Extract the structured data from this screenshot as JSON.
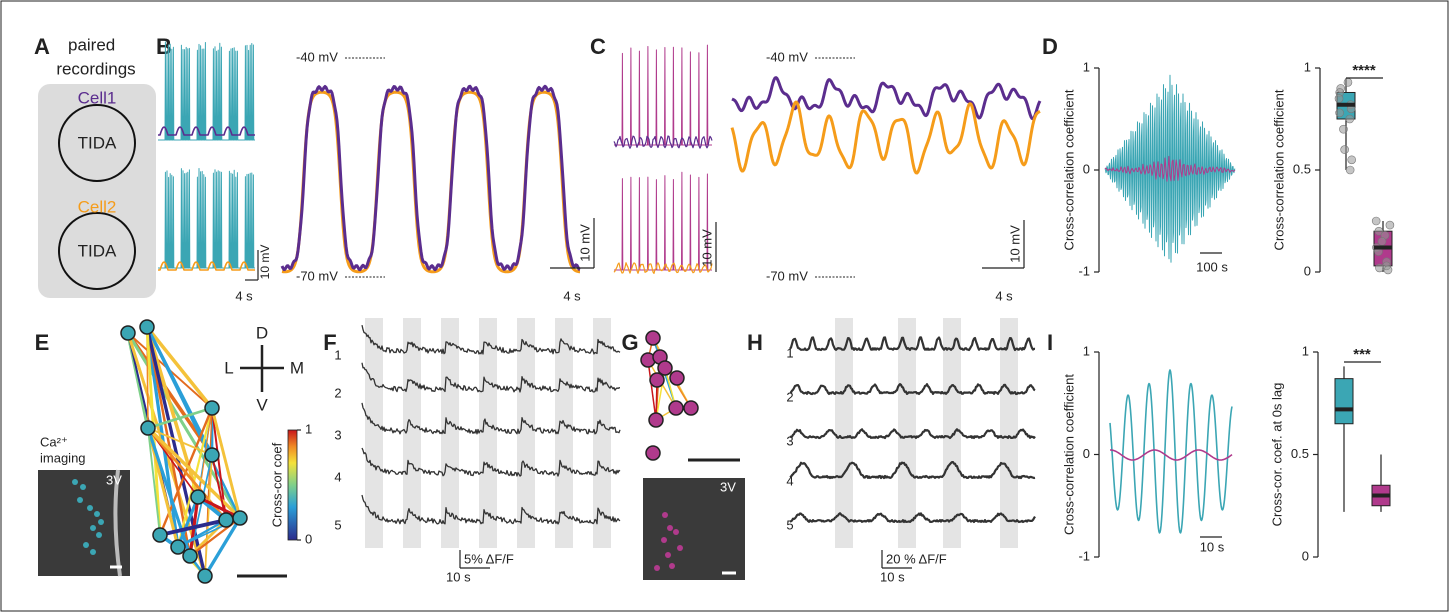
{
  "panels": {
    "A": {
      "label": "A",
      "title_line1": "paired",
      "title_line2": "recordings",
      "cells": [
        {
          "name": "Cell1",
          "type": "TIDA"
        },
        {
          "name": "Cell2",
          "type": "TIDA"
        }
      ]
    },
    "B": {
      "label": "B",
      "upper_level": "-40 mV",
      "lower_level": "-70 mV",
      "scale_small": {
        "y": "10 mV",
        "x": "4 s"
      },
      "scale_large": {
        "y": "10 mV",
        "x": "4 s"
      }
    },
    "C": {
      "label": "C",
      "upper_level": "-40 mV",
      "lower_level": "-70 mV",
      "scale_small": {
        "y": "10 mV",
        "x": ""
      },
      "scale_large": {
        "y": "10 mV",
        "x": "4 s"
      }
    },
    "D": {
      "label": "D",
      "xcorr": {
        "ylabel": "Cross-correlation coefficient",
        "ylim": [
          -1,
          1
        ],
        "yticks": [
          -1,
          0,
          1
        ],
        "scale": "100 s"
      },
      "box": {
        "ylabel": "Cross-correlation coefficient",
        "ylim": [
          0,
          1
        ],
        "yticks": [
          0,
          0.5,
          1
        ],
        "significance": "****",
        "groups": [
          {
            "color": "#3ba6b4",
            "whisker_low": 0.5,
            "q1": 0.75,
            "median": 0.82,
            "q3": 0.88,
            "whisker_high": 0.95,
            "points": [
              0.93,
              0.9,
              0.88,
              0.85,
              0.82,
              0.8,
              0.78,
              0.75,
              0.7,
              0.6,
              0.55,
              0.5
            ]
          },
          {
            "color": "#b03a8c",
            "whisker_low": 0,
            "q1": 0.03,
            "median": 0.12,
            "q3": 0.2,
            "whisker_high": 0.25,
            "points": [
              0.25,
              0.23,
              0.2,
              0.18,
              0.15,
              0.12,
              0.1,
              0.05,
              0.03,
              0.02,
              0.01
            ]
          }
        ]
      }
    },
    "E": {
      "label": "E",
      "imaging_line1": "Ca²⁺",
      "imaging_line2": "imaging",
      "image_label": "3V",
      "compass": {
        "up": "D",
        "left": "L",
        "right": "M",
        "down": "V"
      },
      "colorbar": {
        "label": "Cross-cor coef",
        "lim": [
          0,
          1
        ],
        "ticks": [
          0,
          1
        ]
      }
    },
    "F": {
      "label": "F",
      "traces": [
        1,
        2,
        3,
        4,
        5
      ],
      "scale": {
        "y": "5% ΔF/F",
        "x": "10 s"
      }
    },
    "G": {
      "label": "G",
      "image_label": "3V"
    },
    "H": {
      "label": "H",
      "traces": [
        1,
        2,
        3,
        4,
        5
      ],
      "scale": {
        "y": "20 % ΔF/F",
        "x": "10 s"
      }
    },
    "I": {
      "label": "I",
      "xcorr": {
        "ylabel": "Cross-correlation coefficient",
        "ylim": [
          -1,
          1
        ],
        "yticks": [
          -1,
          0,
          1
        ],
        "scale": "10 s"
      },
      "box": {
        "ylabel": "Cross-cor. coef. at 0s lag",
        "ylim": [
          0,
          1
        ],
        "yticks": [
          0,
          0.5,
          1
        ],
        "significance": "***",
        "groups": [
          {
            "color": "#3ba6b4",
            "whisker_low": 0.22,
            "q1": 0.65,
            "median": 0.72,
            "q3": 0.87,
            "whisker_high": 0.93
          },
          {
            "color": "#b03a8c",
            "whisker_low": 0.22,
            "q1": 0.25,
            "median": 0.3,
            "q3": 0.35,
            "whisker_high": 0.5
          }
        ]
      }
    }
  }
}
